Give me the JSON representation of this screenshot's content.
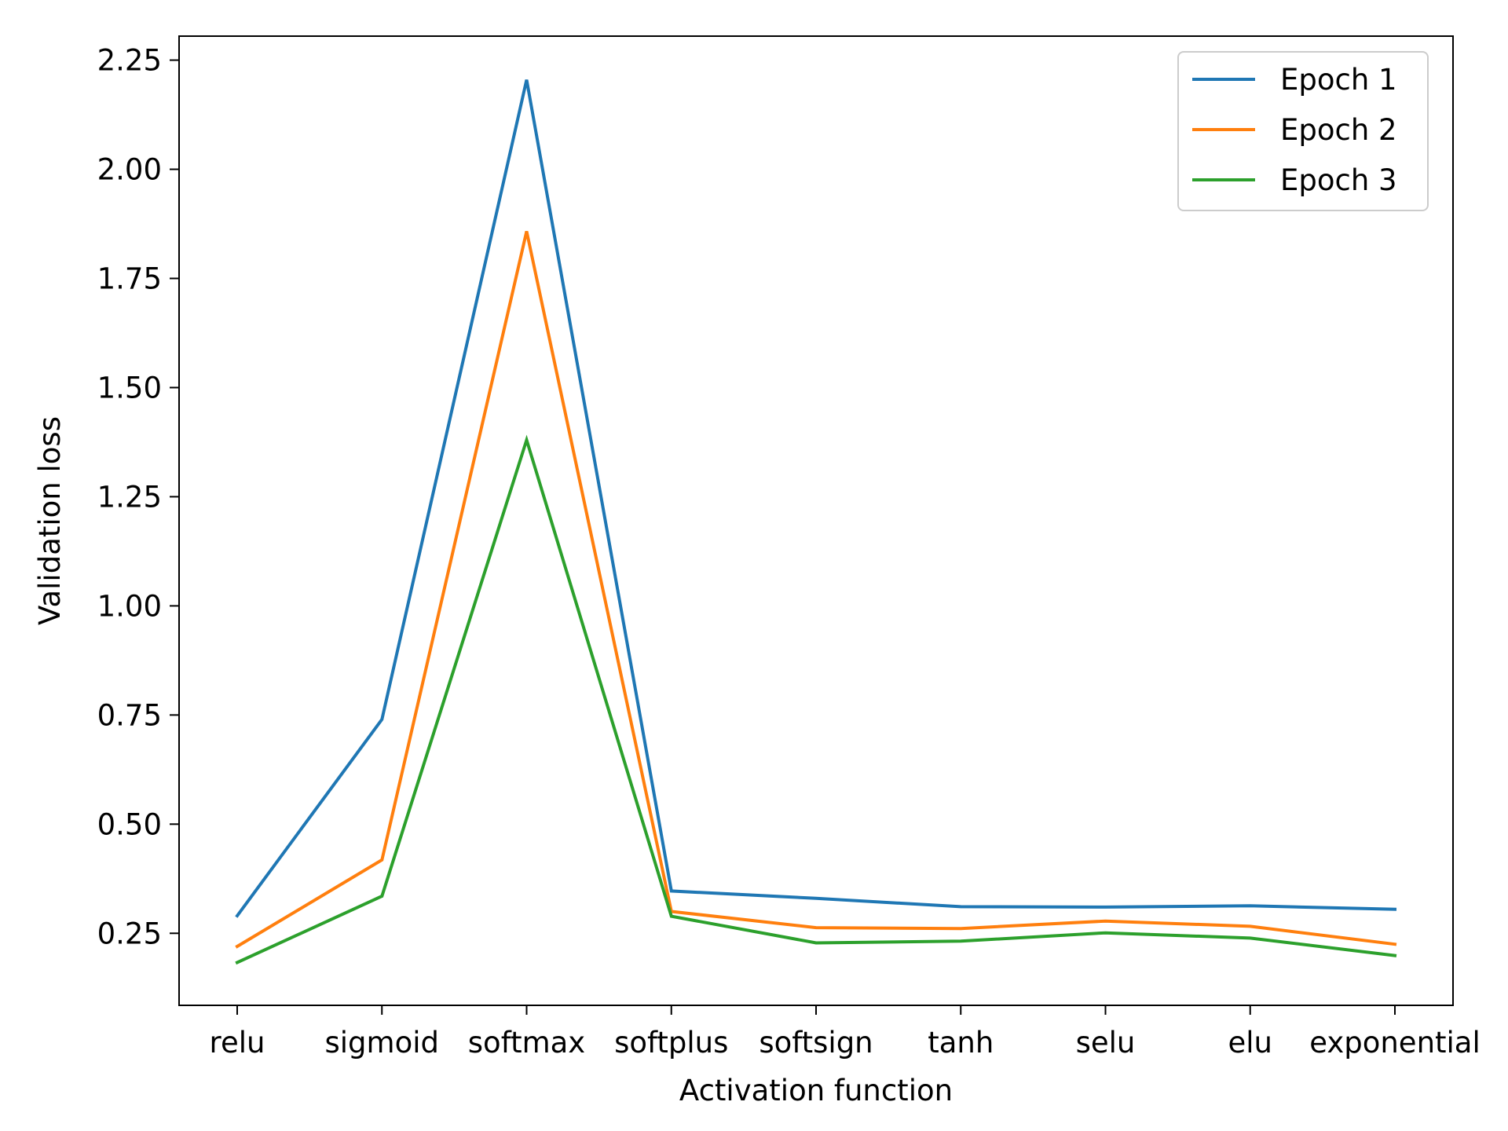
{
  "chart_data": {
    "type": "line",
    "title": "",
    "xlabel": "Activation function",
    "ylabel": "Validation loss",
    "categories": [
      "relu",
      "sigmoid",
      "softmax",
      "softplus",
      "softsign",
      "tanh",
      "selu",
      "elu",
      "exponential"
    ],
    "ylim": [
      0.085,
      2.305
    ],
    "yticks": [
      0.25,
      0.5,
      0.75,
      1.0,
      1.25,
      1.5,
      1.75,
      2.0,
      2.25
    ],
    "ytick_labels": [
      "0.25",
      "0.50",
      "0.75",
      "1.00",
      "1.25",
      "1.50",
      "1.75",
      "2.00",
      "2.25"
    ],
    "grid": false,
    "legend_position": "top-right",
    "series": [
      {
        "name": "Epoch 1",
        "color": "#1f77b4",
        "values": [
          0.29,
          0.74,
          2.205,
          0.347,
          0.33,
          0.311,
          0.31,
          0.313,
          0.305
        ]
      },
      {
        "name": "Epoch 2",
        "color": "#ff7f0e",
        "values": [
          0.22,
          0.418,
          1.858,
          0.3,
          0.263,
          0.261,
          0.278,
          0.266,
          0.225
        ]
      },
      {
        "name": "Epoch 3",
        "color": "#2ca02c",
        "values": [
          0.183,
          0.335,
          1.38,
          0.289,
          0.228,
          0.232,
          0.251,
          0.239,
          0.199
        ]
      }
    ]
  }
}
